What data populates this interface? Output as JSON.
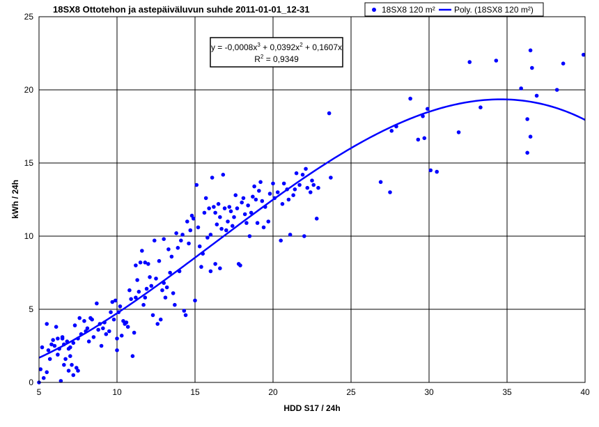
{
  "chart_data": {
    "type": "scatter",
    "title": "18SX8 Ottotehon ja astepäiväluvun suhde 2011-01-01_12-31",
    "xlabel": "HDD S17 / 24h",
    "ylabel": "kWh / 24h",
    "xlim": [
      5,
      40
    ],
    "ylim": [
      0,
      25
    ],
    "xticks": [
      5,
      10,
      15,
      20,
      25,
      30,
      35,
      40
    ],
    "yticks": [
      0,
      5,
      10,
      15,
      20,
      25
    ],
    "grid": true,
    "legend_position": "top-right",
    "legend": {
      "points_label": "18SX8 120 m²",
      "trend_label": "Poly. (18SX8 120 m²)"
    },
    "colors": {
      "points": "#0000ff",
      "trend": "#0000ff",
      "grid": "#000000"
    },
    "trendline": {
      "type": "polynomial",
      "order": 3,
      "coefficients": {
        "a3": -0.0008,
        "a2": 0.0392,
        "a1": 0.1607,
        "a0": 0
      },
      "equation_prefix": "y = -0,0008x",
      "equation_mid1": " + 0,0392x",
      "equation_mid2": " + 0,1607x",
      "exp3": "3",
      "exp2": "2",
      "r2_prefix": "R",
      "r2_exp": "2",
      "r2_suffix": " = 0,9349"
    },
    "series": [
      {
        "name": "18SX8 120 m²",
        "points": [
          [
            5.0,
            0.0
          ],
          [
            5.1,
            0.9
          ],
          [
            5.2,
            2.4
          ],
          [
            5.3,
            0.3
          ],
          [
            5.5,
            0.7
          ],
          [
            5.6,
            2.2
          ],
          [
            5.5,
            4.0
          ],
          [
            5.7,
            1.6
          ],
          [
            5.8,
            2.6
          ],
          [
            5.9,
            2.9
          ],
          [
            6.0,
            2.5
          ],
          [
            6.1,
            3.8
          ],
          [
            6.2,
            1.9
          ],
          [
            6.2,
            3.0
          ],
          [
            6.3,
            2.3
          ],
          [
            6.4,
            0.1
          ],
          [
            6.5,
            3.0
          ],
          [
            6.5,
            3.1
          ],
          [
            6.6,
            1.2
          ],
          [
            6.6,
            2.6
          ],
          [
            6.7,
            1.6
          ],
          [
            6.8,
            2.8
          ],
          [
            6.9,
            2.3
          ],
          [
            6.9,
            0.8
          ],
          [
            7.0,
            2.4
          ],
          [
            7.0,
            1.8
          ],
          [
            7.1,
            1.2
          ],
          [
            7.2,
            0.5
          ],
          [
            7.2,
            2.7
          ],
          [
            7.3,
            3.9
          ],
          [
            7.4,
            1.0
          ],
          [
            7.5,
            3.0
          ],
          [
            7.5,
            0.8
          ],
          [
            7.6,
            4.4
          ],
          [
            7.7,
            3.3
          ],
          [
            7.9,
            4.2
          ],
          [
            8.0,
            3.5
          ],
          [
            8.1,
            3.7
          ],
          [
            8.2,
            2.8
          ],
          [
            8.3,
            4.4
          ],
          [
            8.4,
            4.3
          ],
          [
            8.5,
            3.1
          ],
          [
            8.7,
            5.4
          ],
          [
            8.8,
            3.6
          ],
          [
            8.9,
            4.0
          ],
          [
            9.0,
            2.5
          ],
          [
            9.1,
            3.7
          ],
          [
            9.2,
            4.1
          ],
          [
            9.3,
            3.3
          ],
          [
            9.5,
            3.5
          ],
          [
            9.6,
            4.8
          ],
          [
            9.7,
            5.5
          ],
          [
            9.8,
            4.3
          ],
          [
            9.9,
            5.6
          ],
          [
            10.0,
            3.0
          ],
          [
            10.0,
            2.2
          ],
          [
            10.1,
            4.8
          ],
          [
            10.2,
            5.2
          ],
          [
            10.3,
            3.2
          ],
          [
            10.4,
            4.2
          ],
          [
            10.5,
            4.0
          ],
          [
            10.6,
            4.1
          ],
          [
            10.7,
            3.8
          ],
          [
            10.8,
            6.3
          ],
          [
            10.9,
            5.7
          ],
          [
            11.0,
            1.8
          ],
          [
            11.1,
            3.4
          ],
          [
            11.2,
            5.8
          ],
          [
            11.2,
            8.0
          ],
          [
            11.3,
            7.0
          ],
          [
            11.4,
            6.2
          ],
          [
            11.5,
            8.2
          ],
          [
            11.6,
            9.0
          ],
          [
            11.7,
            5.3
          ],
          [
            11.8,
            8.2
          ],
          [
            11.8,
            5.8
          ],
          [
            11.9,
            6.4
          ],
          [
            12.0,
            8.1
          ],
          [
            12.1,
            7.2
          ],
          [
            12.2,
            6.6
          ],
          [
            12.3,
            4.6
          ],
          [
            12.4,
            9.7
          ],
          [
            12.5,
            7.1
          ],
          [
            12.6,
            4.0
          ],
          [
            12.7,
            8.3
          ],
          [
            12.8,
            4.3
          ],
          [
            12.9,
            6.3
          ],
          [
            13.0,
            9.8
          ],
          [
            13.0,
            6.8
          ],
          [
            13.1,
            5.8
          ],
          [
            13.2,
            6.5
          ],
          [
            13.3,
            9.1
          ],
          [
            13.4,
            7.5
          ],
          [
            13.5,
            8.6
          ],
          [
            13.6,
            6.1
          ],
          [
            13.7,
            5.3
          ],
          [
            13.8,
            10.2
          ],
          [
            13.9,
            9.2
          ],
          [
            14.0,
            7.6
          ],
          [
            14.1,
            9.7
          ],
          [
            14.2,
            10.1
          ],
          [
            14.3,
            4.9
          ],
          [
            14.4,
            4.6
          ],
          [
            14.5,
            11.0
          ],
          [
            14.6,
            9.5
          ],
          [
            14.7,
            10.4
          ],
          [
            14.8,
            11.4
          ],
          [
            14.9,
            11.2
          ],
          [
            15.0,
            5.6
          ],
          [
            15.1,
            13.5
          ],
          [
            15.2,
            10.6
          ],
          [
            15.3,
            9.3
          ],
          [
            15.4,
            7.9
          ],
          [
            15.5,
            8.8
          ],
          [
            15.6,
            11.6
          ],
          [
            15.7,
            12.6
          ],
          [
            15.8,
            9.9
          ],
          [
            15.9,
            11.9
          ],
          [
            16.0,
            10.1
          ],
          [
            16.0,
            7.6
          ],
          [
            16.1,
            14.0
          ],
          [
            16.2,
            12.0
          ],
          [
            16.3,
            11.6
          ],
          [
            16.3,
            8.1
          ],
          [
            16.4,
            10.8
          ],
          [
            16.5,
            12.2
          ],
          [
            16.6,
            11.3
          ],
          [
            16.6,
            7.8
          ],
          [
            16.7,
            10.5
          ],
          [
            16.8,
            14.2
          ],
          [
            16.9,
            11.9
          ],
          [
            17.0,
            10.4
          ],
          [
            17.1,
            11.0
          ],
          [
            17.2,
            12.0
          ],
          [
            17.3,
            11.7
          ],
          [
            17.4,
            10.7
          ],
          [
            17.5,
            11.3
          ],
          [
            17.6,
            12.8
          ],
          [
            17.7,
            11.9
          ],
          [
            17.8,
            8.1
          ],
          [
            17.9,
            8.0
          ],
          [
            18.0,
            12.3
          ],
          [
            18.1,
            12.6
          ],
          [
            18.2,
            11.5
          ],
          [
            18.3,
            10.9
          ],
          [
            18.4,
            12.1
          ],
          [
            18.5,
            10.0
          ],
          [
            18.6,
            11.6
          ],
          [
            18.7,
            12.7
          ],
          [
            18.8,
            13.4
          ],
          [
            18.9,
            12.5
          ],
          [
            19.0,
            10.9
          ],
          [
            19.1,
            13.1
          ],
          [
            19.2,
            13.7
          ],
          [
            19.3,
            12.4
          ],
          [
            19.4,
            10.6
          ],
          [
            19.5,
            12.0
          ],
          [
            19.7,
            11.0
          ],
          [
            19.8,
            12.9
          ],
          [
            20.0,
            13.6
          ],
          [
            20.1,
            12.6
          ],
          [
            20.3,
            13.0
          ],
          [
            20.5,
            9.7
          ],
          [
            20.6,
            12.2
          ],
          [
            20.7,
            13.6
          ],
          [
            20.9,
            13.2
          ],
          [
            21.0,
            12.5
          ],
          [
            21.1,
            10.1
          ],
          [
            21.3,
            12.8
          ],
          [
            21.4,
            13.2
          ],
          [
            21.5,
            14.3
          ],
          [
            21.7,
            13.5
          ],
          [
            21.9,
            14.2
          ],
          [
            22.0,
            10.0
          ],
          [
            22.1,
            14.6
          ],
          [
            22.2,
            13.3
          ],
          [
            22.4,
            13.0
          ],
          [
            22.5,
            13.8
          ],
          [
            22.6,
            13.5
          ],
          [
            22.8,
            11.2
          ],
          [
            22.9,
            13.3
          ],
          [
            23.6,
            18.4
          ],
          [
            23.7,
            14.0
          ],
          [
            26.9,
            13.7
          ],
          [
            27.5,
            13.0
          ],
          [
            27.6,
            17.2
          ],
          [
            27.9,
            17.5
          ],
          [
            28.8,
            19.4
          ],
          [
            29.3,
            16.6
          ],
          [
            29.6,
            18.2
          ],
          [
            29.7,
            16.7
          ],
          [
            29.9,
            18.7
          ],
          [
            30.1,
            14.5
          ],
          [
            30.5,
            14.4
          ],
          [
            31.9,
            17.1
          ],
          [
            32.6,
            21.9
          ],
          [
            33.3,
            18.8
          ],
          [
            34.3,
            22.0
          ],
          [
            35.9,
            20.1
          ],
          [
            36.3,
            18.0
          ],
          [
            36.3,
            15.7
          ],
          [
            36.5,
            16.8
          ],
          [
            36.5,
            22.7
          ],
          [
            36.6,
            21.5
          ],
          [
            36.9,
            19.6
          ],
          [
            38.2,
            20.0
          ],
          [
            38.6,
            21.8
          ],
          [
            39.9,
            22.4
          ]
        ]
      }
    ]
  }
}
